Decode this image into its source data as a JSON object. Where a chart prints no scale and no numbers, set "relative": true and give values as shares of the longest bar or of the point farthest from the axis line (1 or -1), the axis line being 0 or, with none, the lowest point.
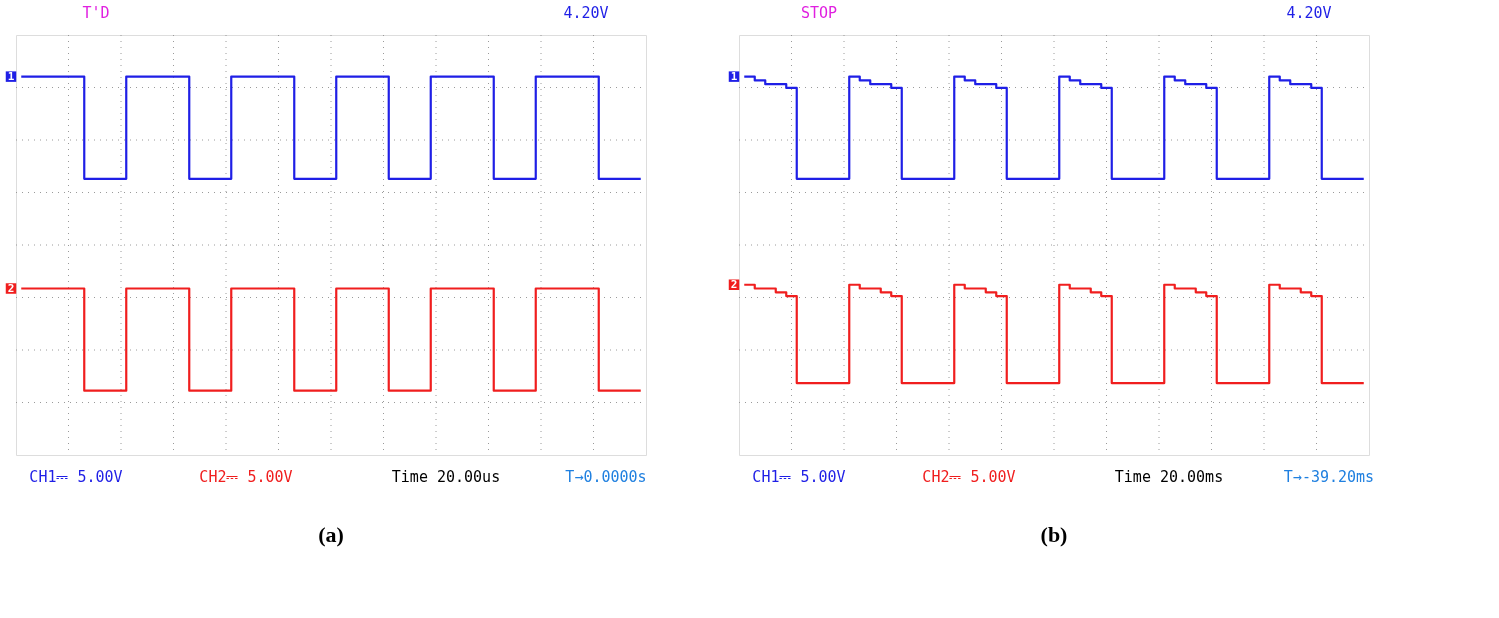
{
  "chart_data": [
    {
      "type": "step",
      "title": "(a)",
      "relative": true,
      "grid": true,
      "categories": [
        null,
        null,
        null,
        null,
        null,
        null,
        null,
        null,
        null,
        null,
        null,
        null,
        null,
        null,
        null,
        null,
        null,
        null,
        null,
        null,
        null,
        null,
        null,
        null,
        null,
        null,
        null,
        null,
        null,
        null,
        null,
        null,
        null,
        null,
        null,
        null,
        null,
        null,
        null,
        null,
        null,
        null,
        null,
        null,
        null,
        null,
        null,
        null,
        null,
        null,
        null,
        null,
        null,
        null,
        null,
        null,
        null,
        null,
        null,
        null
      ],
      "annotations": [
        "T'D",
        "4.20V",
        "CH1⎓ 5.00V",
        "CH2⎓ 5.00V",
        "Time 20.00us",
        "T→0.0000s"
      ],
      "series": [
        {
          "name": "1",
          "color": "#1f1fe6",
          "values": [
            1,
            1,
            1,
            1,
            1,
            1,
            0.73,
            0.73,
            0.73,
            0.73,
            1,
            1,
            1,
            1,
            1,
            1,
            0.73,
            0.73,
            0.73,
            0.73,
            1,
            1,
            1,
            1,
            1,
            1,
            0.73,
            0.73,
            0.73,
            0.73,
            1,
            1,
            1,
            1,
            1,
            0.73,
            0.73,
            0.73,
            0.73,
            1,
            1,
            1,
            1,
            1,
            1,
            0.73,
            0.73,
            0.73,
            0.73,
            1,
            1,
            1,
            1,
            1,
            1,
            0.73,
            0.73,
            0.73,
            0.73,
            0.73
          ]
        },
        {
          "name": "2",
          "color": "#f01e1e",
          "values": [
            0.44,
            0.44,
            0.44,
            0.44,
            0.44,
            0.44,
            0.17,
            0.17,
            0.17,
            0.17,
            0.44,
            0.44,
            0.44,
            0.44,
            0.44,
            0.44,
            0.17,
            0.17,
            0.17,
            0.17,
            0.44,
            0.44,
            0.44,
            0.44,
            0.44,
            0.44,
            0.17,
            0.17,
            0.17,
            0.17,
            0.44,
            0.44,
            0.44,
            0.44,
            0.44,
            0.17,
            0.17,
            0.17,
            0.17,
            0.44,
            0.44,
            0.44,
            0.44,
            0.44,
            0.44,
            0.17,
            0.17,
            0.17,
            0.17,
            0.44,
            0.44,
            0.44,
            0.44,
            0.44,
            0.44,
            0.17,
            0.17,
            0.17,
            0.17,
            0.17
          ]
        }
      ]
    },
    {
      "type": "step",
      "title": "(b)",
      "relative": true,
      "grid": true,
      "categories": [
        null,
        null,
        null,
        null,
        null,
        null,
        null,
        null,
        null,
        null,
        null,
        null,
        null,
        null,
        null,
        null,
        null,
        null,
        null,
        null,
        null,
        null,
        null,
        null,
        null,
        null,
        null,
        null,
        null,
        null,
        null,
        null,
        null,
        null,
        null,
        null,
        null,
        null,
        null,
        null,
        null,
        null,
        null,
        null,
        null,
        null,
        null,
        null,
        null,
        null,
        null,
        null,
        null,
        null,
        null,
        null,
        null,
        null,
        null,
        null
      ],
      "annotations": [
        "STOP",
        "4.20V",
        "CH1⎓ 5.00V",
        "CH2⎓ 5.00V",
        "Time 20.00ms",
        "T→-39.20ms"
      ],
      "series": [
        {
          "name": "1",
          "color": "#1f1fe6",
          "values": [
            1,
            0.99,
            0.98,
            0.98,
            0.97,
            0.73,
            0.73,
            0.73,
            0.73,
            0.73,
            1,
            0.99,
            0.98,
            0.98,
            0.97,
            0.73,
            0.73,
            0.73,
            0.73,
            0.73,
            1,
            0.99,
            0.98,
            0.98,
            0.97,
            0.73,
            0.73,
            0.73,
            0.73,
            0.73,
            1,
            0.99,
            0.98,
            0.98,
            0.97,
            0.73,
            0.73,
            0.73,
            0.73,
            0.73,
            1,
            0.99,
            0.98,
            0.98,
            0.97,
            0.73,
            0.73,
            0.73,
            0.73,
            0.73,
            1,
            0.99,
            0.98,
            0.98,
            0.97,
            0.73,
            0.73,
            0.73,
            0.73,
            0.73
          ]
        },
        {
          "name": "2",
          "color": "#f01e1e",
          "values": [
            0.45,
            0.44,
            0.44,
            0.43,
            0.42,
            0.19,
            0.19,
            0.19,
            0.19,
            0.19,
            0.45,
            0.44,
            0.44,
            0.43,
            0.42,
            0.19,
            0.19,
            0.19,
            0.19,
            0.19,
            0.45,
            0.44,
            0.44,
            0.43,
            0.42,
            0.19,
            0.19,
            0.19,
            0.19,
            0.19,
            0.45,
            0.44,
            0.44,
            0.43,
            0.42,
            0.19,
            0.19,
            0.19,
            0.19,
            0.19,
            0.45,
            0.44,
            0.44,
            0.43,
            0.42,
            0.19,
            0.19,
            0.19,
            0.19,
            0.19,
            0.45,
            0.44,
            0.44,
            0.43,
            0.42,
            0.19,
            0.19,
            0.19,
            0.19,
            0.19
          ]
        }
      ]
    }
  ]
}
